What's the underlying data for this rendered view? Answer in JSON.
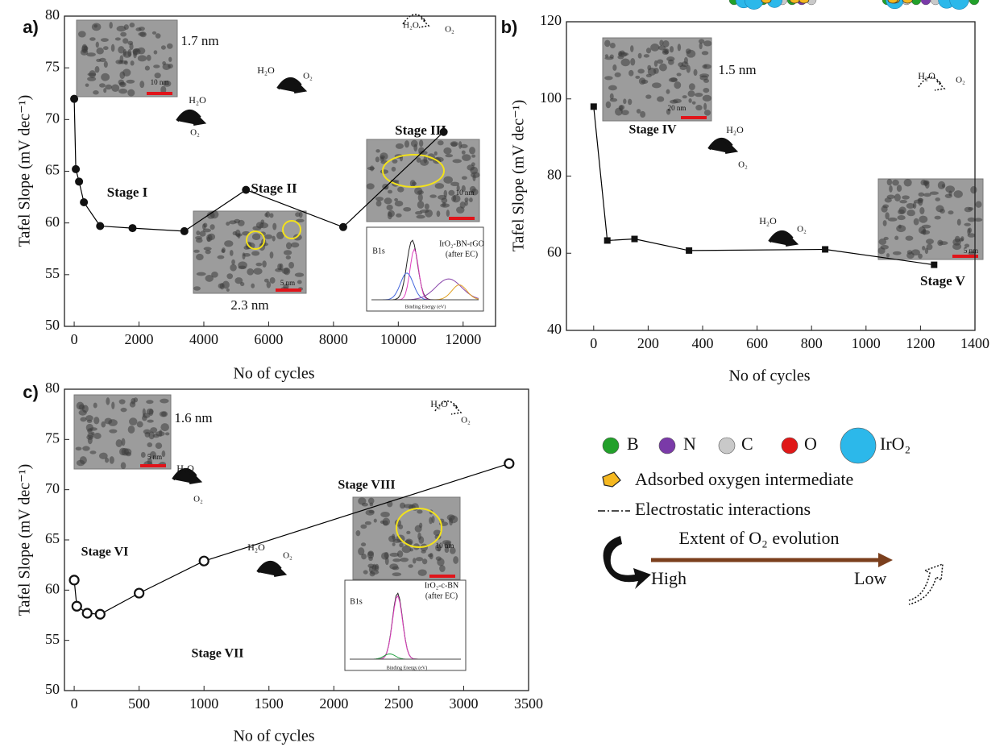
{
  "chart_data": [
    {
      "type": "line",
      "panel": "a)",
      "marker": "circle",
      "color": "#000000",
      "x_label": "No of cycles",
      "y_label": "Tafel Slope (mV dec⁻¹)",
      "x": [
        0,
        50,
        150,
        300,
        800,
        1800,
        3400,
        5300,
        8300,
        11400
      ],
      "values": [
        72,
        65.2,
        64,
        62,
        59.7,
        59.5,
        59.2,
        63.2,
        59.6,
        68.8
      ],
      "xlim": [
        -300,
        13000
      ],
      "xticks": [
        0,
        2000,
        4000,
        6000,
        8000,
        10000,
        12000
      ],
      "ylim": [
        50,
        80
      ],
      "yticks": [
        50,
        55,
        60,
        65,
        70,
        75,
        80
      ],
      "annotations": [
        "1.7 nm",
        "10 nm",
        "H₂O",
        "O₂",
        "Stage I",
        "H₂O",
        "O₂",
        "Stage II",
        "H₂O",
        "O₂",
        "Stage III",
        "5 nm",
        "2.3 nm",
        "10 nm",
        "IrO₂-BN-rGO",
        "(after EC)",
        "B1s",
        "Binding Energy (eV)"
      ]
    },
    {
      "type": "line",
      "panel": "b)",
      "marker": "square",
      "color": "#000000",
      "x_label": "No of cycles",
      "y_label": "Tafel Slope (mV dec⁻¹)",
      "x": [
        0,
        50,
        150,
        350,
        850,
        1250
      ],
      "values": [
        98,
        63.3,
        63.7,
        60.7,
        61,
        57
      ],
      "xlim": [
        -100,
        1400
      ],
      "xticks": [
        0,
        200,
        400,
        600,
        800,
        1000,
        1200,
        1400
      ],
      "ylim": [
        40,
        120
      ],
      "yticks": [
        40,
        60,
        80,
        100,
        120
      ],
      "annotations": [
        "1.5 nm",
        "20 nm",
        "Stage IV",
        "H₂O",
        "O₂",
        "H₂O",
        "O₂",
        "H₂O",
        "O₂",
        "5 nm",
        "Stage V"
      ]
    },
    {
      "type": "line",
      "panel": "c)",
      "marker": "open-circle",
      "color": "#000000",
      "x_label": "No of cycles",
      "y_label": "Tafel Slope (mV dec⁻¹)",
      "x": [
        0,
        20,
        100,
        200,
        500,
        1000,
        3350
      ],
      "values": [
        61,
        58.4,
        57.7,
        57.6,
        59.7,
        62.9,
        72.6
      ],
      "xlim": [
        -75,
        3500
      ],
      "xticks": [
        0,
        500,
        1000,
        1500,
        2000,
        2500,
        3000,
        3500
      ],
      "ylim": [
        50,
        80
      ],
      "yticks": [
        50,
        55,
        60,
        65,
        70,
        75,
        80
      ],
      "annotations": [
        "1.6 nm",
        "5 nm",
        "H₂O",
        "O₂",
        "Stage VI",
        "H₂O",
        "O₂",
        "Stage VIII",
        "H₂O",
        "O₂",
        "Stage VII",
        "10 nm",
        "IrO₂-c-BN",
        "(after EC)",
        "B1s",
        "Binding Energy (eV)"
      ]
    }
  ],
  "legend": {
    "items": [
      "B",
      "N",
      "C",
      "O",
      "IrO₂"
    ],
    "colors": [
      "#22a02a",
      "#7a3aa8",
      "#c9c9c9",
      "#e01818",
      "#2cb8ea"
    ],
    "adsorbed": "Adsorbed oxygen intermediate",
    "electrostatic": "Electrostatic interactions",
    "arrow_title": "Extent of O₂ evolution",
    "high": "High",
    "low": "Low"
  }
}
